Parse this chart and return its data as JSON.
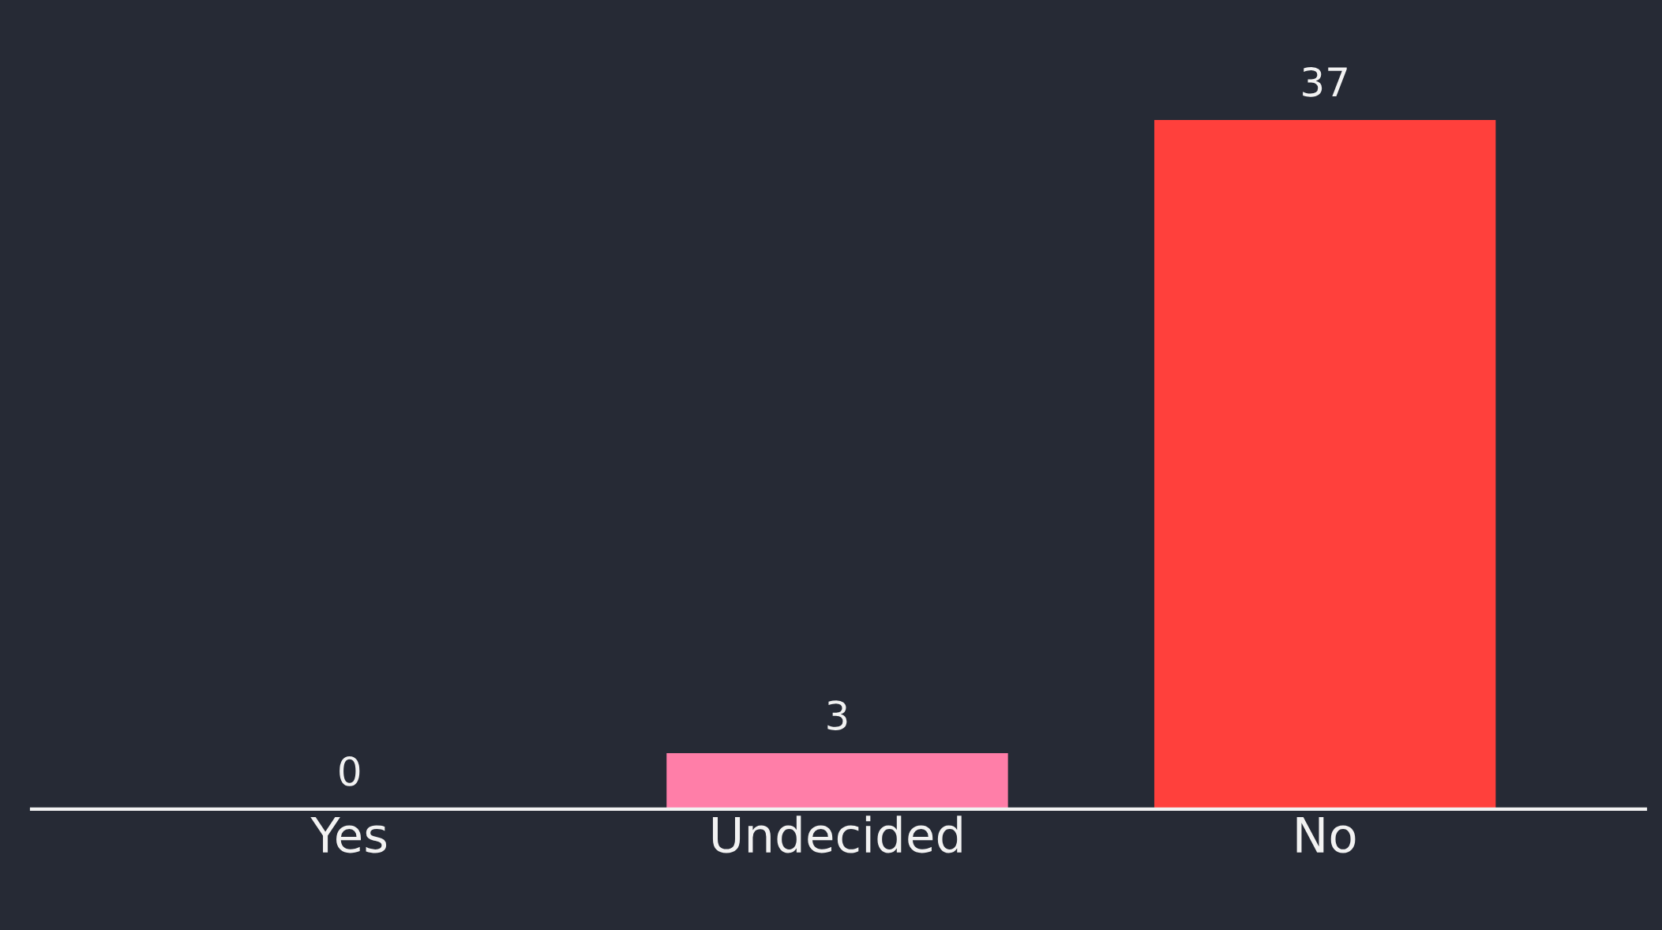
{
  "chart_data": {
    "type": "bar",
    "categories": [
      "Yes",
      "Undecided",
      "No"
    ],
    "values": [
      0,
      3,
      37
    ],
    "colors": [
      "#ff7ea8",
      "#ff7ea8",
      "#ff403c"
    ],
    "data_labels": true,
    "grid": false,
    "legend": false
  }
}
